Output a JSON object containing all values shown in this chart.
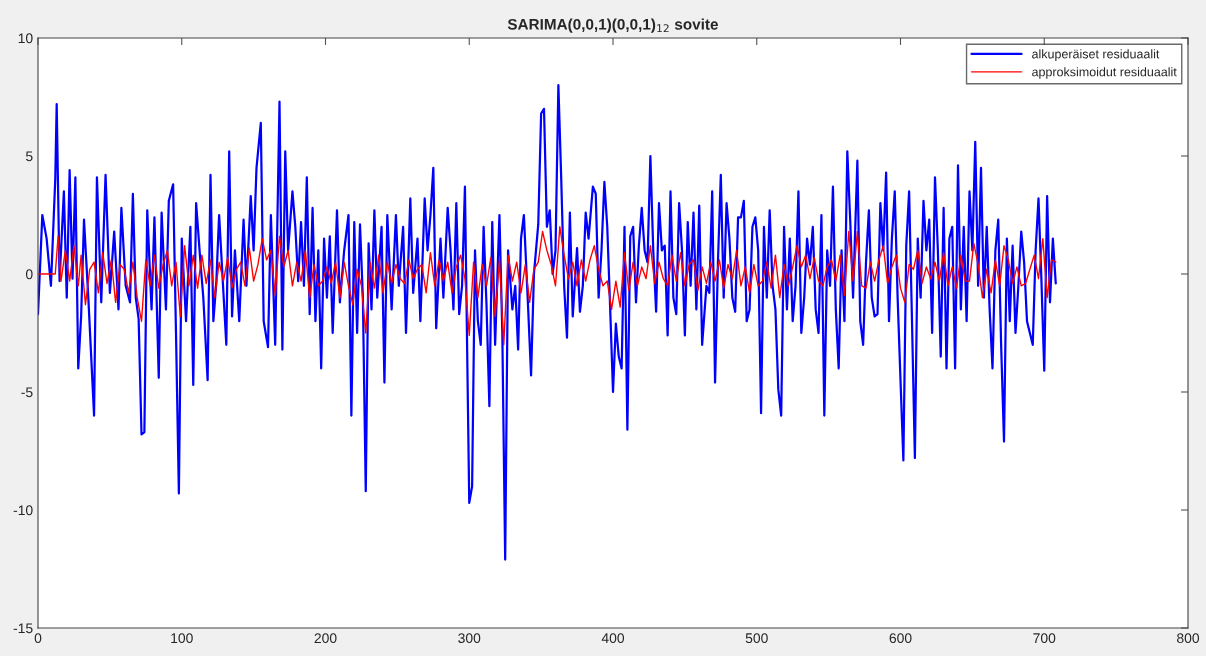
{
  "chart_data": {
    "type": "line",
    "title": "SARIMA(0,0,1)(0,0,1)$_{12}$ sovite",
    "xlim": [
      0,
      800
    ],
    "xticks": [
      0,
      100,
      200,
      300,
      400,
      500,
      600,
      700,
      800
    ],
    "ylim": [
      -15,
      10
    ],
    "yticks": [
      -15,
      -10,
      -5,
      0,
      5,
      10
    ],
    "grid": false,
    "legend": "top right",
    "series": [
      {
        "name": "alkuperäiset residuaalit",
        "color": "#0000ff",
        "x": [
          0,
          3,
          6,
          9,
          12,
          13,
          15,
          18,
          20,
          22,
          24,
          26,
          28,
          30,
          32,
          35,
          37,
          39,
          41,
          44,
          47,
          50,
          53,
          56,
          58,
          61,
          64,
          66,
          68,
          70,
          72,
          74,
          76,
          79,
          81,
          84,
          86,
          89,
          91,
          94,
          96,
          98,
          100,
          103,
          106,
          108,
          110,
          113,
          115,
          118,
          120,
          122,
          124,
          126,
          129,
          131,
          133,
          135,
          137,
          140,
          143,
          145,
          148,
          150,
          152,
          155,
          157,
          160,
          162,
          165,
          168,
          170,
          172,
          174,
          177,
          179,
          181,
          183,
          185,
          187,
          189,
          191,
          193,
          195,
          197,
          199,
          201,
          203,
          205,
          208,
          210,
          213,
          216,
          218,
          220,
          222,
          224,
          226,
          228,
          230,
          232,
          234,
          236,
          239,
          241,
          243,
          246,
          249,
          251,
          254,
          256,
          259,
          261,
          264,
          266,
          269,
          271,
          273,
          275,
          277,
          280,
          282,
          285,
          287,
          289,
          291,
          293,
          295,
          297,
          300,
          302,
          304,
          306,
          308,
          310,
          312,
          314,
          316,
          318,
          321,
          323,
          325,
          327,
          330,
          332,
          334,
          336,
          338,
          341,
          343,
          345,
          348,
          350,
          352,
          354,
          356,
          358,
          360,
          362,
          364,
          366,
          368,
          370,
          372,
          375,
          377,
          379,
          381,
          383,
          386,
          388,
          390,
          392,
          394,
          396,
          398,
          400,
          402,
          404,
          406,
          408,
          410,
          412,
          414,
          416,
          418,
          420,
          422,
          424,
          426,
          428,
          430,
          432,
          434,
          436,
          438,
          440,
          442,
          444,
          446,
          448,
          450,
          452,
          454,
          456,
          458,
          460,
          462,
          465,
          467,
          469,
          471,
          473,
          475,
          477,
          479,
          481,
          483,
          485,
          487,
          489,
          491,
          493,
          495,
          497,
          499,
          501,
          503,
          505,
          507,
          509,
          511,
          513,
          515,
          517,
          519,
          521,
          523,
          525,
          527,
          529,
          531,
          533,
          535,
          537,
          539,
          541,
          543,
          545,
          547,
          549,
          551,
          553,
          555,
          557,
          559,
          561,
          563,
          565,
          567,
          570,
          572,
          574,
          576,
          578,
          580,
          582,
          584,
          586,
          588,
          590,
          592,
          594,
          596,
          598,
          600,
          602,
          604,
          606,
          608,
          610,
          612,
          614,
          616,
          618,
          620,
          622,
          624,
          626,
          628,
          630,
          632,
          634,
          636,
          638,
          640,
          642,
          644,
          646,
          648,
          650,
          652,
          654,
          656,
          658,
          660,
          662,
          664,
          666,
          668,
          670,
          672,
          674,
          676,
          678,
          680,
          682,
          684,
          686,
          688,
          690,
          692,
          694,
          696,
          698,
          700,
          702,
          704,
          706,
          708
        ],
        "values": [
          -1.7,
          2.5,
          1.5,
          -0.5,
          4.0,
          7.2,
          -0.3,
          3.5,
          -1.0,
          4.4,
          -0.2,
          4.1,
          -4.0,
          -1.8,
          2.3,
          -1.0,
          -3.5,
          -6.0,
          4.1,
          -1.2,
          4.2,
          -0.8,
          1.8,
          -1.5,
          2.8,
          -0.5,
          -1.2,
          3.4,
          -1.0,
          -1.9,
          -6.8,
          -6.7,
          2.7,
          -1.5,
          2.4,
          -4.4,
          2.6,
          -1.5,
          3.1,
          3.8,
          -2.5,
          -9.3,
          1.5,
          -2.0,
          2.0,
          -4.7,
          3.0,
          0.5,
          -1.0,
          -4.5,
          4.2,
          -2.0,
          -0.4,
          2.5,
          -0.8,
          -3.0,
          5.2,
          -1.8,
          1.0,
          -2.0,
          2.3,
          -0.5,
          3.3,
          1.0,
          4.5,
          6.4,
          -2.0,
          -3.1,
          2.5,
          -3.0,
          7.3,
          -3.2,
          5.2,
          1.0,
          3.5,
          2.0,
          -0.3,
          2.2,
          -0.5,
          4.1,
          -1.7,
          2.8,
          -2.0,
          1.0,
          -4.0,
          1.5,
          -1.0,
          1.6,
          -2.5,
          2.7,
          -1.2,
          1.0,
          2.5,
          -6.0,
          2.2,
          -2.5,
          2.1,
          -1.0,
          -9.2,
          1.3,
          -1.5,
          2.7,
          -1.0,
          2.0,
          -4.6,
          2.5,
          -1.5,
          2.5,
          -0.5,
          2.0,
          -2.5,
          3.2,
          -0.8,
          1.5,
          -2.0,
          3.2,
          1.0,
          2.5,
          4.5,
          -2.3,
          1.5,
          -1.0,
          2.8,
          1.0,
          -1.5,
          3.0,
          -1.7,
          -0.5,
          3.7,
          -9.7,
          -9.0,
          1.0,
          -2.0,
          -3.0,
          2.0,
          -1.3,
          -5.6,
          2.2,
          -3.0,
          2.5,
          -2.5,
          -12.1,
          1.0,
          -1.5,
          -0.5,
          -3.2,
          1.5,
          2.5,
          -1.5,
          -4.3,
          0.0,
          2.1,
          6.8,
          7.0,
          2.0,
          2.7,
          0.0,
          1.0,
          8.0,
          4.0,
          -0.5,
          -2.7,
          2.6,
          -1.8,
          1.1,
          -1.6,
          -0.5,
          2.6,
          1.5,
          3.7,
          3.4,
          -1.0,
          1.0,
          3.9,
          2.0,
          -1.4,
          -5.0,
          -2.1,
          -3.5,
          -4.0,
          2.0,
          -6.6,
          1.6,
          2.0,
          -1.2,
          1.2,
          2.8,
          1.0,
          0.5,
          5.0,
          1.0,
          -1.6,
          3.0,
          1.0,
          1.2,
          -2.6,
          3.5,
          -1.0,
          -1.7,
          3.0,
          1.0,
          -2.6,
          2.2,
          -0.5,
          2.6,
          -1.5,
          2.9,
          -3.0,
          -0.5,
          -0.8,
          3.5,
          -4.6,
          0.5,
          4.2,
          -1.0,
          3.0,
          1.5,
          -1.0,
          -1.6,
          2.4,
          2.4,
          3.1,
          -2.0,
          -1.5,
          2.0,
          2.4,
          1.0,
          -5.9,
          2.0,
          -1.0,
          2.7,
          -0.5,
          -1.5,
          -4.9,
          -6.0,
          2.0,
          -1.5,
          1.5,
          -2.0,
          -0.5,
          3.5,
          -2.5,
          -1.0,
          1.5,
          0.4,
          2.0,
          -1.5,
          -2.5,
          2.5,
          -6.0,
          1.0,
          -0.5,
          3.7,
          -1.5,
          -4.0,
          1.0,
          -2.0,
          5.2,
          2.3,
          -1.0,
          4.8,
          -2.0,
          -3.0,
          0.5,
          2.7,
          -1.0,
          -1.8,
          -1.7,
          3.0,
          1.0,
          4.3,
          -2.0,
          1.5,
          3.5,
          -1.0,
          -4.5,
          -7.9,
          1.2,
          3.5,
          -2.0,
          -7.8,
          1.5,
          -1.0,
          3.1,
          1.0,
          2.3,
          -2.5,
          4.1,
          1.0,
          -3.5,
          2.8,
          -4.0,
          1.5,
          2.0,
          -4.0,
          4.6,
          -1.5,
          2.0,
          -2.0,
          3.5,
          1.0,
          5.6,
          -0.5,
          4.5,
          -1.0,
          2.0,
          -1.5,
          -4.0,
          1.0,
          2.3,
          -3.0,
          -7.1,
          1.5,
          -2.0,
          1.2,
          -2.5,
          -0.5,
          1.8,
          0.5,
          -2.0,
          -2.5,
          -3.0,
          1.0,
          3.2,
          -0.2,
          -4.1,
          3.3,
          -1.2,
          1.5,
          -0.4
        ]
      },
      {
        "name": "approksimoidut residuaalit",
        "color": "#ff0000",
        "x": [
          0,
          12,
          14,
          16,
          19,
          22,
          25,
          28,
          30,
          33,
          36,
          39,
          42,
          45,
          48,
          51,
          54,
          57,
          60,
          63,
          66,
          69,
          72,
          75,
          78,
          81,
          84,
          87,
          90,
          93,
          96,
          99,
          102,
          105,
          108,
          111,
          114,
          117,
          120,
          123,
          126,
          129,
          132,
          135,
          138,
          141,
          144,
          147,
          150,
          153,
          156,
          159,
          162,
          165,
          168,
          171,
          174,
          177,
          180,
          183,
          186,
          189,
          192,
          195,
          198,
          201,
          204,
          207,
          210,
          213,
          216,
          219,
          222,
          225,
          228,
          231,
          234,
          237,
          240,
          243,
          246,
          249,
          252,
          255,
          258,
          261,
          264,
          267,
          270,
          273,
          276,
          279,
          282,
          285,
          288,
          291,
          294,
          297,
          300,
          303,
          306,
          309,
          312,
          315,
          318,
          321,
          324,
          327,
          330,
          333,
          336,
          339,
          342,
          345,
          348,
          351,
          354,
          357,
          360,
          363,
          366,
          369,
          372,
          375,
          378,
          381,
          384,
          387,
          390,
          393,
          396,
          399,
          402,
          405,
          408,
          411,
          414,
          417,
          420,
          423,
          426,
          429,
          432,
          435,
          438,
          441,
          444,
          447,
          450,
          453,
          456,
          459,
          462,
          465,
          468,
          471,
          474,
          477,
          480,
          483,
          486,
          489,
          492,
          495,
          498,
          501,
          504,
          507,
          510,
          513,
          516,
          519,
          522,
          525,
          528,
          531,
          534,
          537,
          540,
          543,
          546,
          549,
          552,
          555,
          558,
          561,
          564,
          567,
          570,
          573,
          576,
          579,
          582,
          585,
          588,
          591,
          594,
          597,
          600,
          603,
          606,
          609,
          612,
          615,
          618,
          621,
          624,
          627,
          630,
          633,
          636,
          639,
          642,
          645,
          648,
          651,
          654,
          657,
          660,
          663,
          666,
          669,
          672,
          675,
          678,
          681,
          684,
          687,
          690,
          693,
          696,
          699,
          702,
          705,
          708
        ],
        "values": [
          0,
          0,
          1.6,
          -0.3,
          1.0,
          -0.3,
          1.2,
          -0.5,
          0.8,
          -1.3,
          0.2,
          0.5,
          -0.8,
          0.9,
          -0.4,
          0.6,
          -1.2,
          0.4,
          0.2,
          -0.8,
          0.5,
          -1.0,
          -2.0,
          0.6,
          -0.5,
          0.8,
          -0.6,
          0.4,
          1.0,
          -0.5,
          0.5,
          -1.8,
          1.2,
          -0.5,
          0.8,
          -0.6,
          0.8,
          -0.4,
          0.6,
          -1.0,
          0.5,
          -0.3,
          0.7,
          -0.6,
          0.2,
          0.5,
          -0.5,
          1.1,
          -0.3,
          0.4,
          1.5,
          0.6,
          1.0,
          -0.9,
          1.6,
          0.3,
          1.0,
          -0.5,
          0.5,
          -0.3,
          1.0,
          -1.0,
          0.4,
          -0.5,
          -0.3,
          0.3,
          -0.4,
          0.5,
          -1.0,
          0.5,
          -0.5,
          -1.3,
          0.2,
          -0.5,
          -2.5,
          0.5,
          -0.6,
          0.8,
          -0.8,
          0.5,
          -0.4,
          0.4,
          -0.2,
          -0.4,
          0.6,
          -0.2,
          0.2,
          0.4,
          -0.8,
          0.9,
          -0.5,
          0.6,
          -0.3,
          0.5,
          -0.8,
          0.3,
          0.8,
          -0.2,
          -2.6,
          0.5,
          -1.0,
          0.4,
          -0.5,
          0.7,
          -1.8,
          0.6,
          -3.0,
          0.8,
          -0.3,
          0.5,
          -0.8,
          0.4,
          -1.2,
          0.2,
          0.5,
          1.8,
          1.0,
          0.4,
          -0.5,
          2.0,
          0.8,
          -0.2,
          0.5,
          -0.5,
          0.6,
          -0.3,
          0.6,
          1.2,
          0.2,
          -0.5,
          -0.3,
          -1.5,
          -0.3,
          -1.4,
          0.9,
          -0.7,
          0.5,
          -0.5,
          0.3,
          -0.2,
          1.2,
          -0.4,
          0.5,
          -0.2,
          -0.5,
          0.8,
          -0.3,
          0.9,
          -0.5,
          0.4,
          0.6,
          -0.7,
          0.3,
          -0.4,
          0.5,
          -0.3,
          0.6,
          -0.6,
          0.4,
          -0.2,
          1.0,
          -0.5,
          0.3,
          -0.8,
          0.4,
          -0.5,
          -0.3,
          0.5,
          -0.6,
          0.8,
          -1.0,
          0.4,
          -0.5,
          0.3,
          1.2,
          0.3,
          0.8,
          -0.2,
          0.7,
          -0.3,
          -0.5,
          0.3,
          0.6,
          -0.3,
          0.8,
          -0.9,
          1.8,
          -0.3,
          1.8,
          -0.5,
          -0.6,
          0.5,
          -0.3,
          0.6,
          1.2,
          -0.4,
          0.3,
          0.8,
          -0.6,
          -1.2,
          0.4,
          0.2,
          1.0,
          -0.4,
          0.3,
          -0.2,
          0.5,
          -0.3,
          0.9,
          -0.5,
          0.3,
          -0.6,
          0.8,
          -0.3,
          -0.3,
          1.3,
          0.4,
          -1.0,
          0.2,
          -0.8,
          0.6,
          -0.5,
          1.2,
          0.6,
          -0.4,
          0.3,
          -0.5,
          -0.4,
          0.2,
          0.8,
          -0.2,
          1.5,
          -1.0,
          0.6,
          0.5
        ]
      }
    ]
  }
}
